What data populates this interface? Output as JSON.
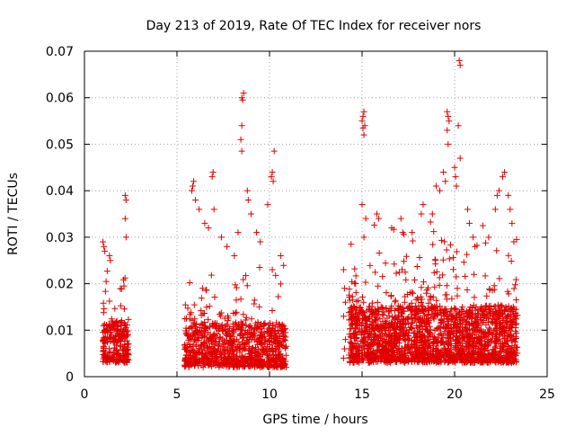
{
  "chart_data": {
    "type": "scatter",
    "title": "Day 213 of 2019, Rate Of TEC Index for receiver nors",
    "xlabel": "GPS time / hours",
    "ylabel": "ROTI / TECUs",
    "xlim": [
      0,
      25
    ],
    "ylim": [
      0,
      0.07
    ],
    "x_ticks": [
      0,
      5,
      10,
      15,
      20,
      25
    ],
    "y_ticks": [
      0,
      0.01,
      0.02,
      0.03,
      0.04,
      0.05,
      0.06,
      0.07
    ],
    "x_tick_labels": [
      "0",
      "5",
      "10",
      "15",
      "20",
      "25"
    ],
    "y_tick_labels": [
      "0",
      "0.01",
      "0.02",
      "0.03",
      "0.04",
      "0.05",
      "0.06",
      "0.07"
    ],
    "grid": true,
    "marker": "+",
    "marker_color": "#e00000",
    "axis_color": "#000000",
    "grid_color": "#a0a0a0",
    "dense_regions": [
      {
        "x_start": 1.0,
        "x_end": 2.4,
        "y_min": 0.003,
        "y_max": 0.023,
        "count": 260
      },
      {
        "x_start": 5.4,
        "x_end": 10.9,
        "y_min": 0.002,
        "y_max": 0.023,
        "count": 950
      },
      {
        "x_start": 14.3,
        "x_end": 23.4,
        "y_min": 0.003,
        "y_max": 0.03,
        "count": 2100
      }
    ],
    "series": [
      {
        "name": "ROTI",
        "points": [
          [
            1.0,
            0.029
          ],
          [
            1.05,
            0.028
          ],
          [
            1.1,
            0.027
          ],
          [
            1.35,
            0.026
          ],
          [
            1.4,
            0.025
          ],
          [
            2.2,
            0.039
          ],
          [
            2.25,
            0.038
          ],
          [
            2.2,
            0.034
          ],
          [
            2.25,
            0.03
          ],
          [
            5.8,
            0.04
          ],
          [
            5.85,
            0.041
          ],
          [
            5.9,
            0.042
          ],
          [
            6.0,
            0.038
          ],
          [
            6.2,
            0.036
          ],
          [
            6.5,
            0.033
          ],
          [
            6.7,
            0.032
          ],
          [
            6.9,
            0.043
          ],
          [
            6.95,
            0.044
          ],
          [
            7.0,
            0.036
          ],
          [
            7.4,
            0.03
          ],
          [
            7.7,
            0.028
          ],
          [
            8.1,
            0.026
          ],
          [
            8.3,
            0.031
          ],
          [
            8.5,
            0.06
          ],
          [
            8.55,
            0.0595
          ],
          [
            8.6,
            0.061
          ],
          [
            8.5,
            0.054
          ],
          [
            8.45,
            0.051
          ],
          [
            8.5,
            0.0485
          ],
          [
            8.8,
            0.04
          ],
          [
            8.85,
            0.038
          ],
          [
            9.0,
            0.035
          ],
          [
            9.3,
            0.031
          ],
          [
            9.5,
            0.029
          ],
          [
            9.9,
            0.037
          ],
          [
            10.1,
            0.043
          ],
          [
            10.15,
            0.044
          ],
          [
            10.2,
            0.042
          ],
          [
            10.25,
            0.0485
          ],
          [
            10.6,
            0.026
          ],
          [
            14.0,
            0.023
          ],
          [
            14.05,
            0.019
          ],
          [
            14.1,
            0.016
          ],
          [
            14.0,
            0.013
          ],
          [
            14.1,
            0.008
          ],
          [
            14.05,
            0.006
          ],
          [
            14.0,
            0.004
          ],
          [
            15.0,
            0.055
          ],
          [
            15.05,
            0.056
          ],
          [
            15.1,
            0.057
          ],
          [
            15.15,
            0.054
          ],
          [
            15.1,
            0.052
          ],
          [
            15.05,
            0.0535
          ],
          [
            15.0,
            0.037
          ],
          [
            15.2,
            0.034
          ],
          [
            15.1,
            0.03
          ],
          [
            15.8,
            0.035
          ],
          [
            15.9,
            0.034
          ],
          [
            16.6,
            0.032
          ],
          [
            17.1,
            0.034
          ],
          [
            17.2,
            0.031
          ],
          [
            17.7,
            0.031
          ],
          [
            18.2,
            0.035
          ],
          [
            18.3,
            0.037
          ],
          [
            18.8,
            0.035
          ],
          [
            19.0,
            0.041
          ],
          [
            19.2,
            0.04
          ],
          [
            19.4,
            0.044
          ],
          [
            19.5,
            0.042
          ],
          [
            19.6,
            0.057
          ],
          [
            19.65,
            0.056
          ],
          [
            19.7,
            0.055
          ],
          [
            19.6,
            0.053
          ],
          [
            19.65,
            0.05
          ],
          [
            20.0,
            0.045
          ],
          [
            20.05,
            0.043
          ],
          [
            20.1,
            0.041
          ],
          [
            20.2,
            0.054
          ],
          [
            20.3,
            0.047
          ],
          [
            20.25,
            0.068
          ],
          [
            20.3,
            0.067
          ],
          [
            20.7,
            0.036
          ],
          [
            20.8,
            0.033
          ],
          [
            21.0,
            0.03
          ],
          [
            21.1,
            0.028
          ],
          [
            22.2,
            0.036
          ],
          [
            22.3,
            0.039
          ],
          [
            22.4,
            0.04
          ],
          [
            22.6,
            0.043
          ],
          [
            22.7,
            0.044
          ],
          [
            22.9,
            0.039
          ],
          [
            23.0,
            0.036
          ],
          [
            23.1,
            0.033
          ],
          [
            23.2,
            0.029
          ]
        ]
      }
    ]
  }
}
